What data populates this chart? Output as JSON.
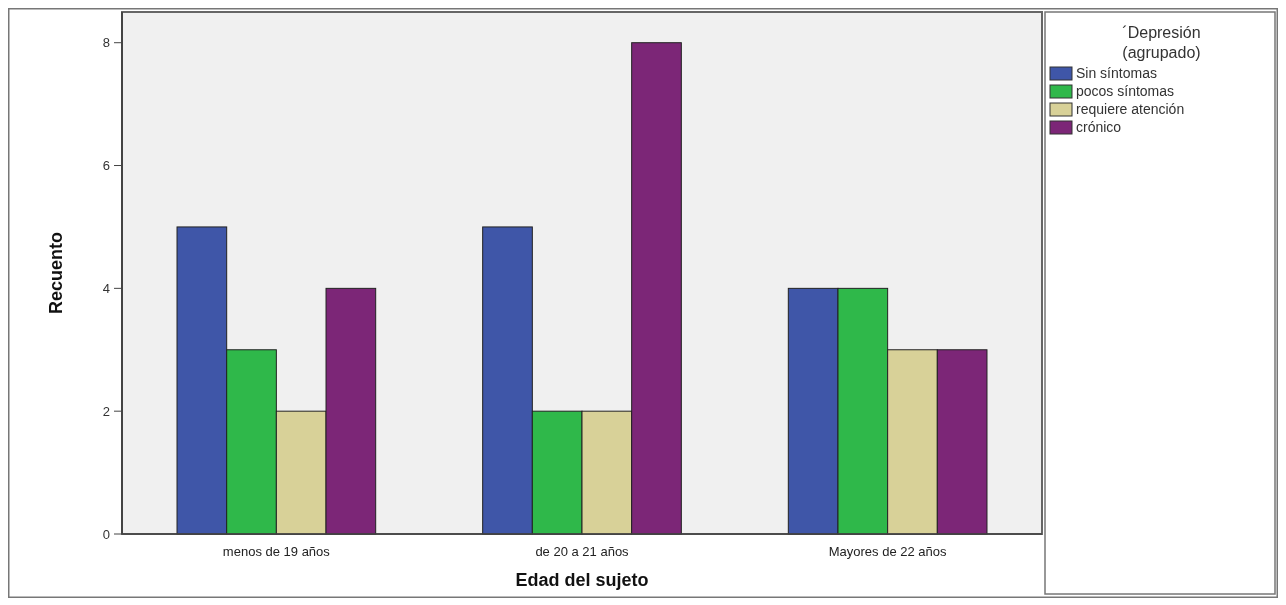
{
  "chart_data": {
    "type": "bar",
    "xlabel": "Edad del sujeto",
    "ylabel": "Recuento",
    "legend_title": "´Depresión (agrupado)",
    "categories": [
      "menos de 19 años",
      "de 20 a 21 años",
      "Mayores de 22 años"
    ],
    "series": [
      {
        "name": "Sin síntomas",
        "color": "#3f56a8",
        "values": [
          5,
          5,
          4
        ]
      },
      {
        "name": "pocos síntomas",
        "color": "#2fb84a",
        "values": [
          3,
          2,
          4
        ]
      },
      {
        "name": "requiere atención",
        "color": "#d8d198",
        "values": [
          2,
          2,
          3
        ]
      },
      {
        "name": "crónico",
        "color": "#7c2677",
        "values": [
          4,
          8,
          3
        ]
      }
    ],
    "ylim": [
      0,
      8.5
    ],
    "yticks": [
      0,
      2,
      4,
      6,
      8
    ],
    "legend": "top right"
  }
}
